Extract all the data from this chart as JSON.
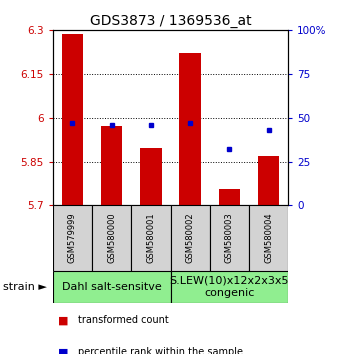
{
  "title": "GDS3873 / 1369536_at",
  "samples": [
    "GSM579999",
    "GSM580000",
    "GSM580001",
    "GSM580002",
    "GSM580003",
    "GSM580004"
  ],
  "transformed_counts": [
    6.285,
    5.97,
    5.895,
    6.22,
    5.755,
    5.87
  ],
  "bar_bottom": 5.7,
  "percentile_ranks": [
    47,
    46,
    46,
    47,
    32,
    43
  ],
  "ylim_min": 5.7,
  "ylim_max": 6.3,
  "yticks": [
    5.7,
    5.85,
    6.0,
    6.15,
    6.3
  ],
  "ytick_labels": [
    "5.7",
    "5.85",
    "6",
    "6.15",
    "6.3"
  ],
  "right_yticks": [
    0,
    25,
    50,
    75,
    100
  ],
  "right_ytick_labels": [
    "0",
    "25",
    "50",
    "75",
    "100%"
  ],
  "bar_color": "#cc0000",
  "dot_color": "#0000cc",
  "bar_width": 0.55,
  "group1_label": "Dahl salt-sensitve",
  "group2_label": "S.LEW(10)x12x2x3x5\ncongenic",
  "group_color": "#90ee90",
  "sample_box_color": "#d3d3d3",
  "tick_label_color_left": "#cc0000",
  "tick_label_color_right": "#0000cc",
  "legend_items": [
    {
      "label": "transformed count",
      "color": "#cc0000"
    },
    {
      "label": "percentile rank within the sample",
      "color": "#0000cc"
    }
  ],
  "strain_label": "strain",
  "title_fontsize": 10,
  "tick_fontsize": 7.5,
  "sample_fontsize": 6,
  "group_fontsize": 8,
  "legend_fontsize": 7,
  "strain_fontsize": 8
}
